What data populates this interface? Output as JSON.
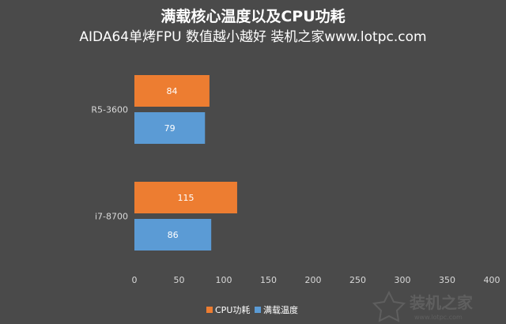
{
  "chart_data": {
    "type": "bar",
    "orientation": "horizontal",
    "title": "满载核心温度以及CPU功耗",
    "subtitle": "AIDA64单烤FPU 数值越小越好 装机之家www.lotpc.com",
    "categories": [
      "R5-3600",
      "i7-8700"
    ],
    "series": [
      {
        "name": "CPU功耗",
        "color": "#ed7d31",
        "values": [
          84,
          115
        ]
      },
      {
        "name": "满载温度",
        "color": "#5b9bd5",
        "values": [
          79,
          86
        ]
      }
    ],
    "xlim": [
      0,
      400
    ],
    "xticks": [
      0,
      50,
      100,
      150,
      200,
      250,
      300,
      350,
      400
    ],
    "grid": false,
    "legend_position": "bottom"
  },
  "watermark": {
    "text": "装机之家",
    "url": "www.lotpc.com"
  }
}
